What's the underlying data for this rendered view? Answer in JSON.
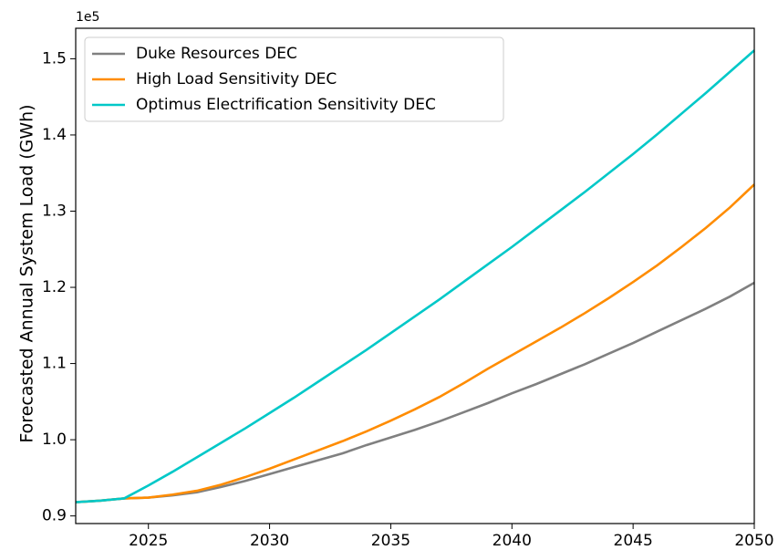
{
  "chart_data": {
    "type": "line",
    "y_label": "Forecasted Annual System Load (GWh)",
    "y_offset_label": "1e5",
    "x": [
      2022,
      2023,
      2024,
      2025,
      2026,
      2027,
      2028,
      2029,
      2030,
      2031,
      2032,
      2033,
      2034,
      2035,
      2036,
      2037,
      2038,
      2039,
      2040,
      2041,
      2042,
      2043,
      2044,
      2045,
      2046,
      2047,
      2048,
      2049,
      2050
    ],
    "series": [
      {
        "name": "Duke Resources DEC",
        "color": "#808080",
        "values": [
          0.918,
          0.92,
          0.923,
          0.924,
          0.927,
          0.931,
          0.938,
          0.946,
          0.955,
          0.964,
          0.973,
          0.982,
          0.993,
          1.003,
          1.013,
          1.024,
          1.036,
          1.048,
          1.061,
          1.073,
          1.086,
          1.099,
          1.113,
          1.127,
          1.142,
          1.157,
          1.172,
          1.188,
          1.206
        ]
      },
      {
        "name": "High Load Sensitivity DEC",
        "color": "#ff8c00",
        "values": [
          0.918,
          0.92,
          0.923,
          0.924,
          0.928,
          0.933,
          0.941,
          0.951,
          0.962,
          0.974,
          0.986,
          0.998,
          1.011,
          1.025,
          1.04,
          1.056,
          1.074,
          1.093,
          1.111,
          1.129,
          1.147,
          1.166,
          1.186,
          1.207,
          1.229,
          1.253,
          1.278,
          1.305,
          1.335
        ]
      },
      {
        "name": "Optimus Electrification Sensitivity DEC",
        "color": "#00c8c8",
        "values": [
          0.918,
          0.92,
          0.923,
          0.94,
          0.958,
          0.977,
          0.996,
          1.015,
          1.035,
          1.055,
          1.076,
          1.097,
          1.118,
          1.14,
          1.162,
          1.184,
          1.207,
          1.23,
          1.253,
          1.277,
          1.301,
          1.325,
          1.35,
          1.375,
          1.401,
          1.428,
          1.455,
          1.483,
          1.511
        ]
      }
    ],
    "xlim": [
      2022,
      2050
    ],
    "xticks": [
      2025,
      2030,
      2035,
      2040,
      2045,
      2050
    ],
    "ylim": [
      0.89,
      1.54
    ],
    "yticks": [
      0.9,
      {
        "value": 1,
        "label": "1.0"
      },
      1.1,
      1.2,
      1.3,
      1.4,
      1.5
    ],
    "legend": "upper left",
    "grid": false
  }
}
